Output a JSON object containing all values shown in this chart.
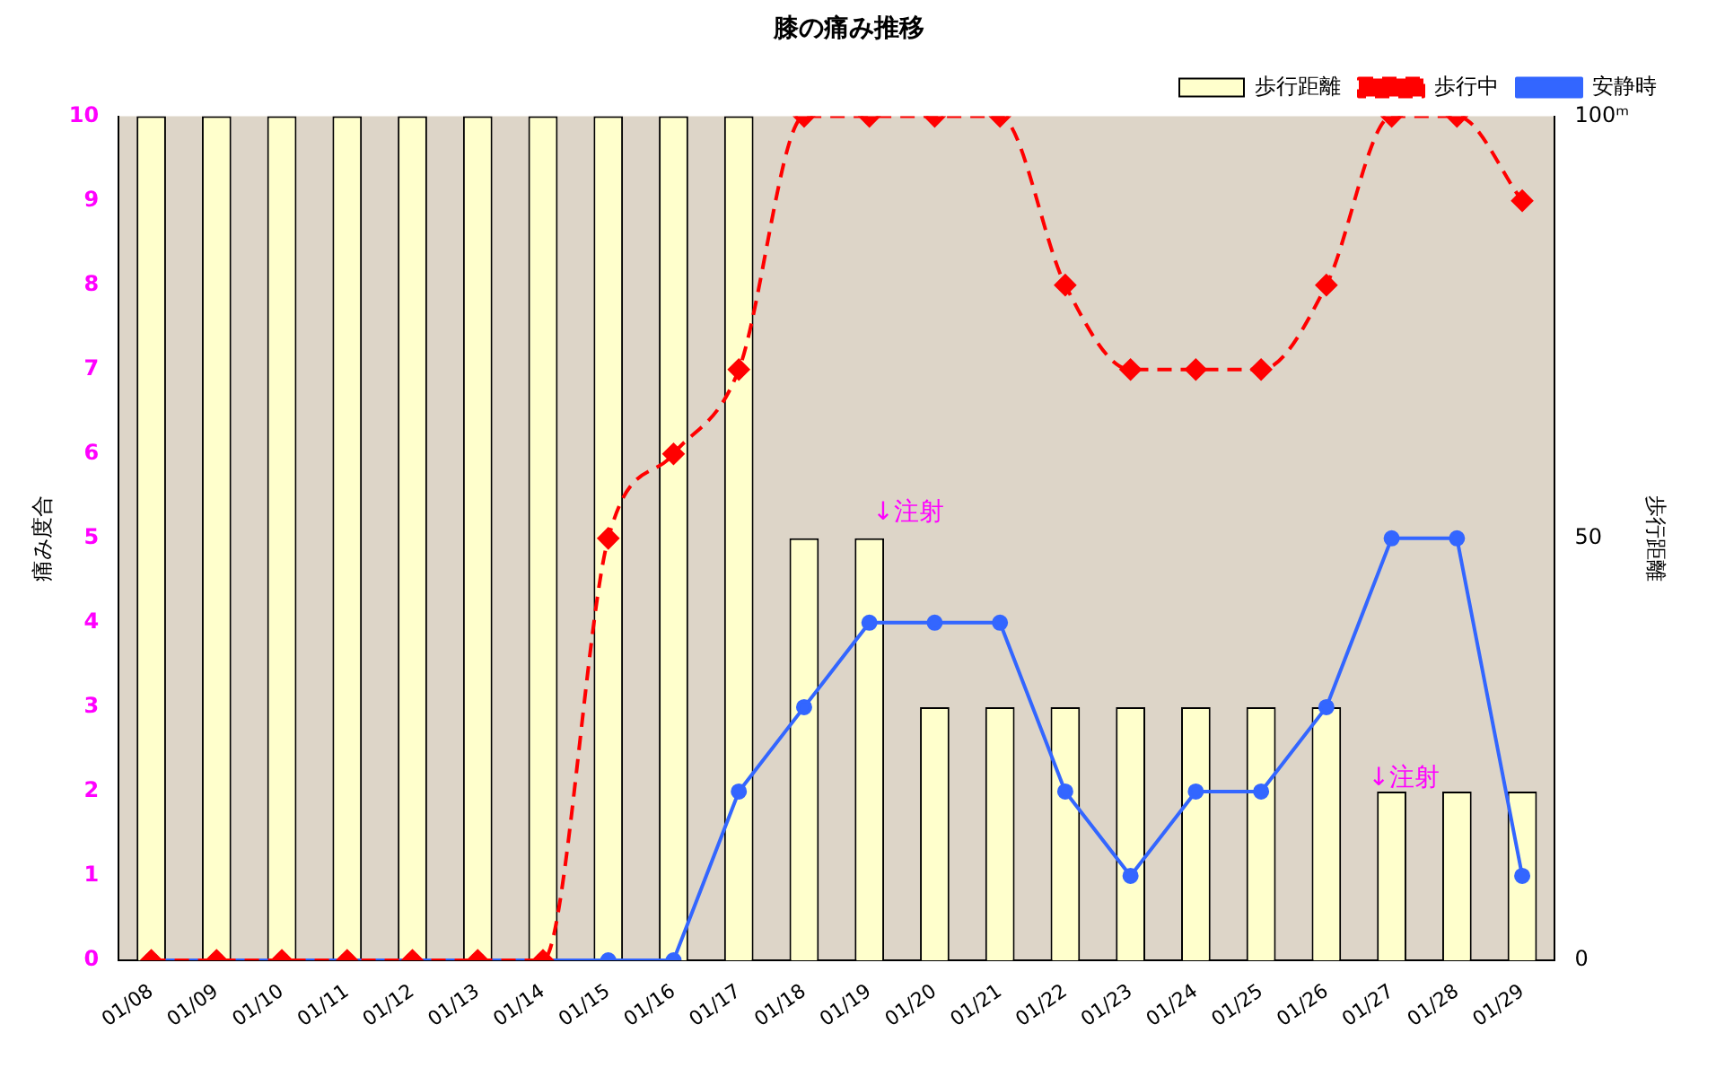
{
  "chart_data": {
    "type": "bar",
    "title": "膝の痛み推移",
    "ylabel": "痛み度合",
    "y2label": "歩行距離",
    "categories": [
      "01/08",
      "01/09",
      "01/10",
      "01/11",
      "01/12",
      "01/13",
      "01/14",
      "01/15",
      "01/16",
      "01/17",
      "01/18",
      "01/19",
      "01/20",
      "01/21",
      "01/22",
      "01/23",
      "01/24",
      "01/25",
      "01/26",
      "01/27",
      "01/28",
      "01/29"
    ],
    "series": [
      {
        "name": "歩行距離",
        "axis": "y2",
        "color": "#ffffcc",
        "values": [
          100,
          100,
          100,
          100,
          100,
          100,
          100,
          100,
          100,
          100,
          50,
          50,
          30,
          30,
          30,
          30,
          30,
          30,
          30,
          20,
          20,
          20
        ]
      },
      {
        "name": "歩行中",
        "type": "line",
        "color": "#ff0000",
        "marker": "diamond",
        "line_style": "dashed",
        "values": [
          0,
          0,
          0,
          0,
          0,
          0,
          0,
          5,
          6,
          7,
          10,
          10,
          10,
          10,
          8,
          7,
          7,
          7,
          8,
          10,
          10,
          9
        ]
      },
      {
        "name": "安静時",
        "type": "line",
        "color": "#3366ff",
        "marker": "circle",
        "line_style": "solid",
        "values": [
          0,
          0,
          0,
          0,
          0,
          0,
          0,
          0,
          0,
          2,
          3,
          4,
          4,
          4,
          2,
          1,
          2,
          2,
          3,
          5,
          5,
          1
        ]
      }
    ],
    "ylim": [
      0,
      10
    ],
    "yticks": [
      0,
      1,
      2,
      3,
      4,
      5,
      6,
      7,
      8,
      9,
      10
    ],
    "y2lim": [
      0,
      100
    ],
    "y2ticks": [
      0,
      50,
      {
        "value": 100,
        "label": "100ᵐ"
      }
    ],
    "annotations": [
      "↓注射",
      "↓注射"
    ],
    "grid": false,
    "legend": "top right"
  }
}
